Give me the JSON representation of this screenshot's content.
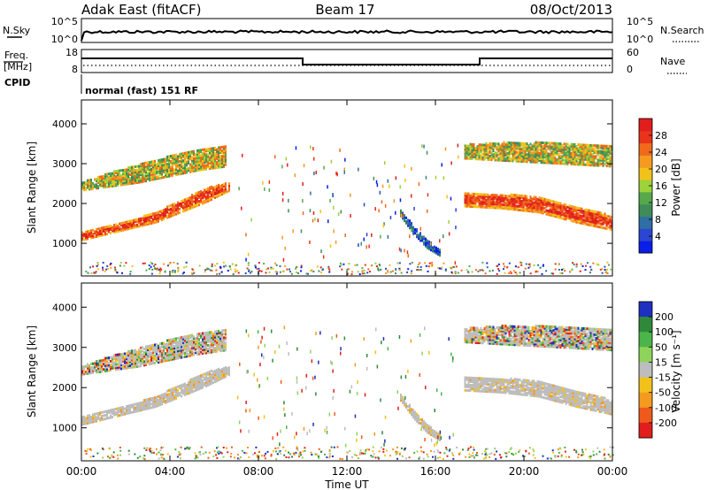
{
  "header": {
    "title": "Adak East (fitACF)",
    "beam": "Beam 17",
    "date": "08/Oct/2013"
  },
  "noise_panel": {
    "left_label": "N.Sky",
    "left_ticks": [
      "10^5",
      "10^0"
    ],
    "right_ticks": [
      "10^5",
      "10^0"
    ],
    "right_label": "N.Search"
  },
  "freq_panel": {
    "left_label_1": "Freq.",
    "left_label_2": "[MHz]",
    "left_ticks": [
      "18",
      "8"
    ],
    "right_ticks": [
      "60",
      "0"
    ],
    "right_label": "Nave",
    "cpid_label": "CPID",
    "cpid_text": "normal (fast) 151 RF"
  },
  "chart_data": [
    {
      "type": "heatmap",
      "name": "power",
      "ylabel": "Slant Range [km]",
      "ylim": [
        180,
        4600
      ],
      "yticks": [
        1000,
        2000,
        3000,
        4000
      ],
      "xlim": [
        0,
        24
      ],
      "colorbar": {
        "label": "Power [dB]",
        "ticks": [
          "4",
          "8",
          "12",
          "16",
          "20",
          "24",
          "28"
        ],
        "colors": [
          "#0a1ee6",
          "#2a46d2",
          "#2f6fa3",
          "#3f8c5a",
          "#55a84c",
          "#9cd23a",
          "#f2c21b",
          "#f59a20",
          "#f06a1c",
          "#e8341b",
          "#e01e1e"
        ]
      },
      "echo_regions": [
        {
          "t": [
            0.0,
            6.7
          ],
          "range_start": [
            1050,
            1200,
            1350,
            1500,
            1750,
            2000,
            2300
          ],
          "range_end": [
            1250,
            1400,
            1550,
            1750,
            2050,
            2350,
            2500
          ],
          "level": "high"
        },
        {
          "t": [
            0.0,
            6.5
          ],
          "range_start": [
            2300,
            2400,
            2500,
            2650,
            2800,
            2900
          ],
          "range_end": [
            2500,
            2750,
            2950,
            3150,
            3300,
            3400
          ],
          "level": "mid"
        },
        {
          "t": [
            14.4,
            16.2
          ],
          "range_start": [
            1650,
            1200,
            850,
            650
          ],
          "range_end": [
            1800,
            1400,
            1050,
            800
          ],
          "level": "low"
        },
        {
          "t": [
            17.3,
            24.0
          ],
          "range_start": [
            1900,
            1850,
            1750,
            1500,
            1300
          ],
          "range_end": [
            2250,
            2200,
            2150,
            1900,
            1650
          ],
          "level": "high"
        },
        {
          "t": [
            17.3,
            24.0
          ],
          "range_start": [
            3100,
            3050,
            3000,
            2950,
            2900
          ],
          "range_end": [
            3450,
            3500,
            3500,
            3450,
            3400
          ],
          "level": "mid"
        }
      ]
    },
    {
      "type": "heatmap",
      "name": "velocity",
      "xlabel": "Time UT",
      "ylabel": "Slant Range [km]",
      "ylim": [
        180,
        4600
      ],
      "yticks": [
        1000,
        2000,
        3000,
        4000
      ],
      "xlim": [
        0,
        24
      ],
      "xticks": [
        "00:00",
        "04:00",
        "08:00",
        "12:00",
        "16:00",
        "20:00",
        "00:00"
      ],
      "colorbar": {
        "label": "Velocity [m s⁻¹]",
        "ticks": [
          "200",
          "100",
          "50",
          "15",
          "-15",
          "-50",
          "-100",
          "-200"
        ],
        "colors": [
          "#1f2fbf",
          "#2e8a3a",
          "#4ab54a",
          "#8fd45a",
          "#bdbdbd",
          "#f2c21b",
          "#f59a20",
          "#ee5a1c",
          "#e01e1e"
        ]
      },
      "echo_regions": [
        {
          "t": [
            0.0,
            6.7
          ],
          "range_start": [
            1050,
            1200,
            1350,
            1500,
            1750,
            2000,
            2300
          ],
          "range_end": [
            1250,
            1400,
            1550,
            1750,
            2050,
            2350,
            2500
          ],
          "level": "grey"
        },
        {
          "t": [
            0.0,
            6.5
          ],
          "range_start": [
            2300,
            2400,
            2500,
            2650,
            2800,
            2900
          ],
          "range_end": [
            2500,
            2750,
            2950,
            3150,
            3300,
            3400
          ],
          "level": "mixed"
        },
        {
          "t": [
            14.4,
            16.2
          ],
          "range_start": [
            1650,
            1200,
            850,
            650
          ],
          "range_end": [
            1800,
            1400,
            1050,
            800
          ],
          "level": "grey"
        },
        {
          "t": [
            17.3,
            24.0
          ],
          "range_start": [
            1900,
            1850,
            1750,
            1500,
            1300
          ],
          "range_end": [
            2250,
            2200,
            2150,
            1900,
            1650
          ],
          "level": "grey"
        },
        {
          "t": [
            17.3,
            24.0
          ],
          "range_start": [
            3100,
            3050,
            3000,
            2950,
            2900
          ],
          "range_end": [
            3450,
            3500,
            3500,
            3450,
            3400
          ],
          "level": "mixed"
        }
      ]
    }
  ]
}
